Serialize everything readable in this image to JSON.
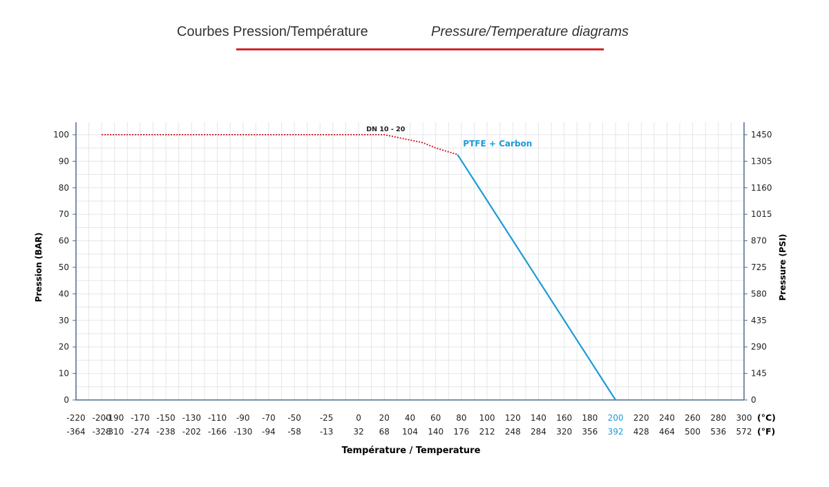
{
  "header": {
    "title_fr": "Courbes Pression/Température",
    "title_en": "Pressure/Temperature diagrams",
    "underline_color": "#d3232a"
  },
  "chart_data": {
    "type": "line",
    "xlabel": "Température / Temperature",
    "ylabel_left": "Pression (BAR)",
    "ylabel_right": "Pressure (PSI)",
    "x_unit_c": "(°C)",
    "x_unit_f": "(°F)",
    "xlim_c": [
      -220,
      300
    ],
    "ylim_bar": [
      0,
      100
    ],
    "x_ticks_c": [
      "-220",
      "-200",
      "-190",
      "-170",
      "-150",
      "-130",
      "-110",
      "-90",
      "-70",
      "-50",
      "-25",
      "0",
      "20",
      "40",
      "60",
      "80",
      "100",
      "120",
      "140",
      "160",
      "180",
      "200",
      "220",
      "240",
      "260",
      "280",
      "300"
    ],
    "x_ticks_f": [
      "-364",
      "-328",
      "-310",
      "-274",
      "-238",
      "-202",
      "-166",
      "-130",
      "-94",
      "-58",
      "-13",
      "32",
      "68",
      "104",
      "140",
      "176",
      "212",
      "248",
      "284",
      "320",
      "356",
      "392",
      "428",
      "464",
      "500",
      "536",
      "572"
    ],
    "highlight_tick_c": "200",
    "highlight_tick_f": "392",
    "y_ticks_bar": [
      "0",
      "10",
      "20",
      "30",
      "40",
      "50",
      "60",
      "70",
      "80",
      "90",
      "100"
    ],
    "y_ticks_psi": [
      "0",
      "145",
      "290",
      "435",
      "580",
      "725",
      "870",
      "1015",
      "1160",
      "1305",
      "1450"
    ],
    "grid": true,
    "series": [
      {
        "name": "DN 10 - 20",
        "style": "dotted",
        "color": "#d3232a",
        "points": [
          [
            -200,
            100
          ],
          [
            20,
            100
          ],
          [
            40,
            98
          ],
          [
            50,
            97
          ],
          [
            60,
            95
          ],
          [
            77,
            92.5
          ]
        ]
      },
      {
        "name": "PTFE + Carbon",
        "style": "solid",
        "color": "#1b9ad6",
        "points": [
          [
            77,
            92.5
          ],
          [
            200,
            0
          ]
        ]
      }
    ]
  }
}
